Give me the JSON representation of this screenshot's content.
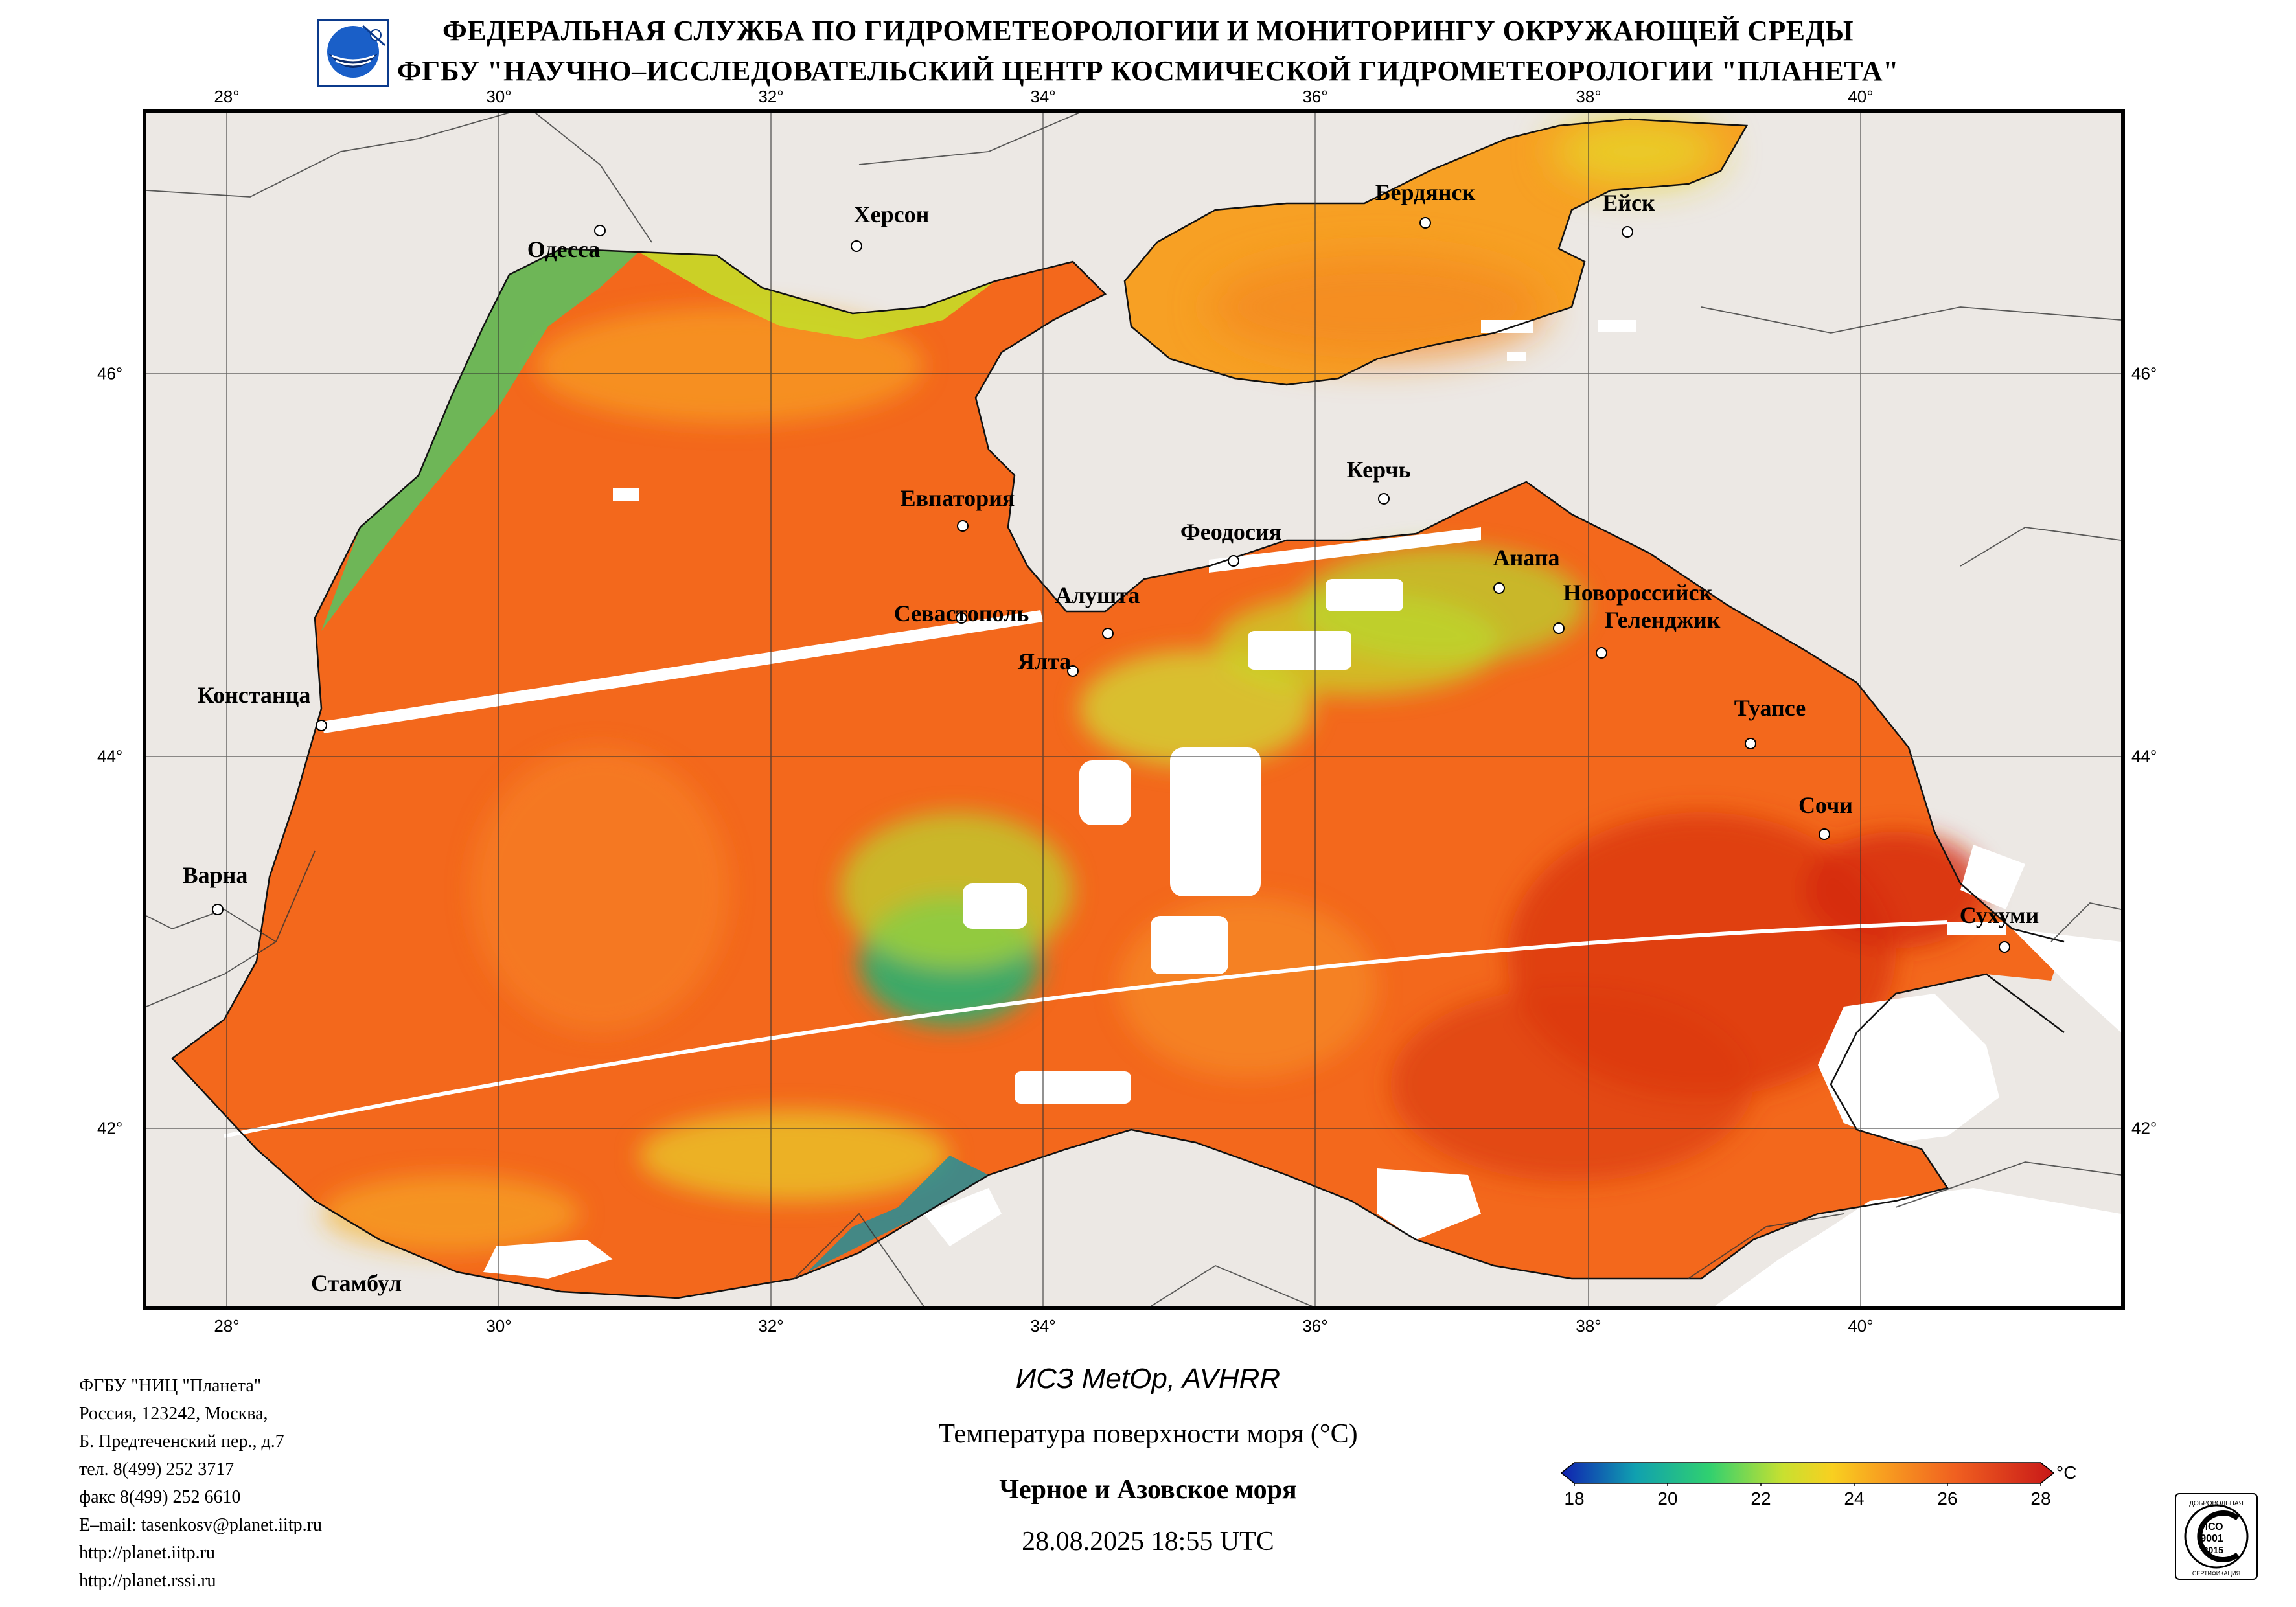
{
  "header": {
    "line1": "ФЕДЕРАЛЬНАЯ СЛУЖБА ПО ГИДРОМЕТЕОРОЛОГИИ И МОНИТОРИНГУ ОКРУЖАЮЩЕЙ СРЕДЫ",
    "line2": "ФГБУ \"НАУЧНО–ИССЛЕДОВАТЕЛЬСКИЙ ЦЕНТР КОСМИЧЕСКОЙ ГИДРОМЕТЕОРОЛОГИИ \"ПЛАНЕТА\""
  },
  "map": {
    "lon_labels": [
      "28°",
      "30°",
      "32°",
      "34°",
      "36°",
      "38°",
      "40°"
    ],
    "lat_labels": [
      "46°",
      "44°",
      "42°"
    ],
    "cities": [
      "Одесса",
      "Херсон",
      "Бердянск",
      "Ейск",
      "Евпатория",
      "Керчь",
      "Феодосия",
      "Анапа",
      "Новороссийск",
      "Геленджик",
      "Севастополь",
      "Алушта",
      "Ялта",
      "Констанца",
      "Туапсе",
      "Сочи",
      "Варна",
      "Сухуми",
      "Стамбул"
    ],
    "colors": {
      "land": "#ece8e4",
      "sea_warm": "#f3681c",
      "sea_hot": "#dc3a10",
      "sea_mid": "#f7a024",
      "sea_cool": "#c6dc28",
      "coast": "#56c462",
      "cloud": "#ffffff"
    }
  },
  "footer": {
    "org_lines": [
      "ФГБУ \"НИЦ \"Планета\"",
      "Россия, 123242, Москва,",
      "Б. Предтеченский пер., д.7",
      "тел. 8(499) 252 3717",
      "факс 8(499) 252 6610",
      "E–mail: tasenkosv@planet.iitp.ru",
      "http://planet.iitp.ru",
      "http://planet.rssi.ru"
    ],
    "satellite": "ИСЗ MetOp, AVHRR",
    "parameter": "Температура поверхности моря (°C)",
    "region": "Черное и Азовское моря",
    "datetime": "28.08.2025 18:55 UTC"
  },
  "colorbar": {
    "ticks": [
      "18",
      "20",
      "22",
      "24",
      "26",
      "28"
    ],
    "unit": "°C",
    "range": [
      18,
      28
    ],
    "stops": [
      "#1020b0",
      "#10a0b0",
      "#30d070",
      "#c8e030",
      "#f8d020",
      "#f8a020",
      "#f06020",
      "#c81818"
    ]
  },
  "iso_badge": {
    "top_text": "ДОБРОВОЛЬНАЯ",
    "line1": "ИСО",
    "line2": "9001",
    "line3": "-2015",
    "bottom_text": "СЕРТИФИКАЦИЯ"
  }
}
